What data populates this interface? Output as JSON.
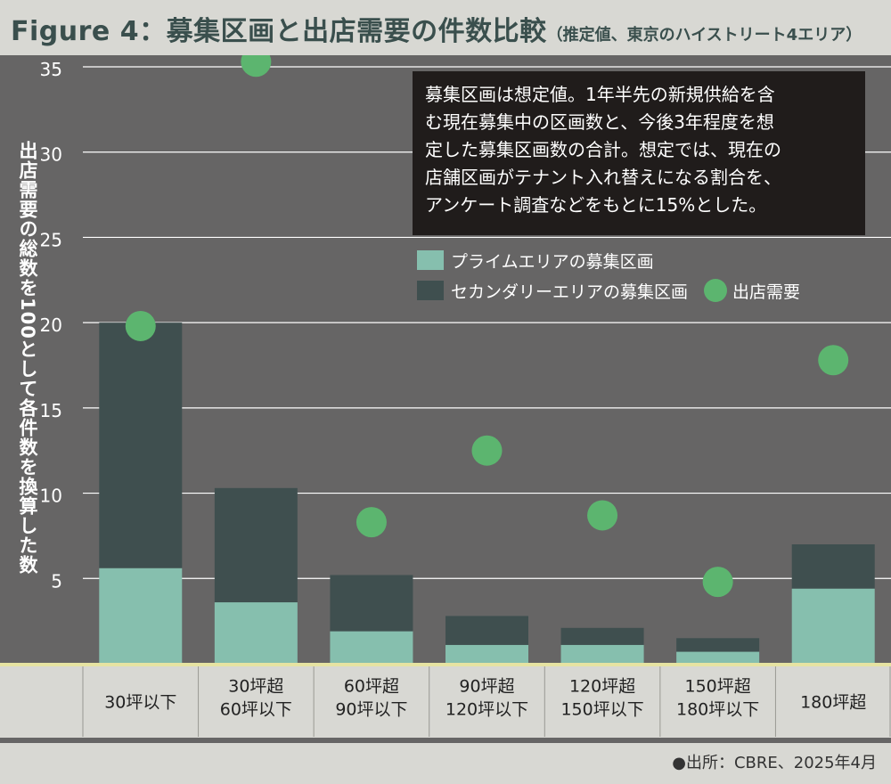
{
  "title": {
    "main": "Figure 4：募集区画と出店需要の件数比較",
    "sub": "（推定値、東京のハイストリート4エリア）"
  },
  "note": {
    "lines": [
      "募集区画は想定値。1年半先の新規供給を含",
      "む現在募集中の区画数と、今後3年程度を想",
      "定した募集区画数の合計。想定では、現在の",
      "店舗区画がテナント入れ替えになる割合を、",
      "アンケート調査などをもとに15%とした。"
    ]
  },
  "legend": {
    "prime": "プライムエリアの募集区画",
    "secondary": "セカンダリーエリアの募集区画",
    "demand": "出店需要"
  },
  "source": "●出所：CBRE、2025年4月",
  "colors": {
    "prime": "#86bfae",
    "secondary": "#3f4f4f",
    "demand": "#5cb56f",
    "panel": "#666565",
    "baseline": "#e6e3a2",
    "grid": "#ffffff"
  },
  "chart_data": {
    "type": "bar",
    "stacked": true,
    "categories": [
      [
        "30坪以下"
      ],
      [
        "30坪超",
        "60坪以下"
      ],
      [
        "60坪超",
        "90坪以下"
      ],
      [
        "90坪超",
        "120坪以下"
      ],
      [
        "120坪超",
        "150坪以下"
      ],
      [
        "150坪超",
        "180坪以下"
      ],
      [
        "180坪超"
      ]
    ],
    "series": [
      {
        "name": "プライムエリアの募集区画",
        "type": "bar",
        "values": [
          5.6,
          3.6,
          1.9,
          1.1,
          1.1,
          0.7,
          4.4
        ]
      },
      {
        "name": "セカンダリーエリアの募集区画",
        "type": "bar",
        "values": [
          14.4,
          6.7,
          3.3,
          1.7,
          1.0,
          0.8,
          2.6
        ]
      },
      {
        "name": "出店需要",
        "type": "scatter",
        "values": [
          19.8,
          35.3,
          8.3,
          12.5,
          8.7,
          4.8,
          17.8
        ]
      }
    ],
    "ylabel": "出店需要の総数を100として各件数を換算した数",
    "ylim": [
      0,
      35
    ],
    "yticks": [
      0,
      5,
      10,
      15,
      20,
      25,
      30,
      35
    ],
    "grid": true,
    "legend_position": "top-right"
  }
}
